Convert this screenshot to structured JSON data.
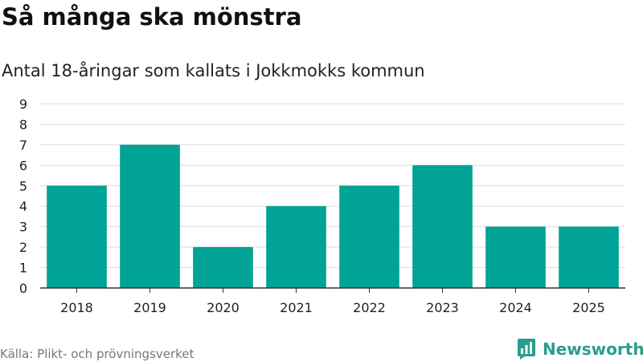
{
  "title": "Så många ska mönstra",
  "subtitle": "Antal 18-åringar som kallats i Jokkmokks kommun",
  "source": "Källa: Plikt- och prövningsverket",
  "brand": {
    "name": "Newsworthy",
    "color": "#2b9c8f",
    "icon": "newsworthy-logo-icon"
  },
  "colors": {
    "bar": "#00a396",
    "grid": "#dddddd",
    "axis": "#333333",
    "text": "#222222"
  },
  "chart_data": {
    "type": "bar",
    "categories": [
      "2018",
      "2019",
      "2020",
      "2021",
      "2022",
      "2023",
      "2024",
      "2025"
    ],
    "values": [
      5,
      7,
      2,
      4,
      5,
      6,
      3,
      3
    ],
    "ylim": [
      0,
      9
    ],
    "yticks": [
      0,
      1,
      2,
      3,
      4,
      5,
      6,
      7,
      8,
      9
    ],
    "xlabel": "",
    "ylabel": "",
    "grid": true
  }
}
